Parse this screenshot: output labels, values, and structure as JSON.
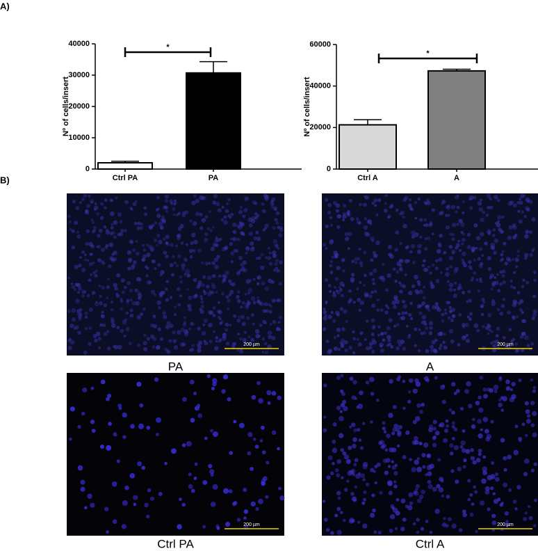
{
  "panel_labels": [
    "A)",
    "B)"
  ],
  "chart_data": [
    {
      "type": "bar",
      "ylabel": "Nº of cells/insert",
      "categories": [
        "Ctrl PA",
        "PA"
      ],
      "values": [
        2000,
        30700
      ],
      "errors": [
        500,
        3600
      ],
      "colors": [
        "#ffffff",
        "#000000"
      ],
      "ylim": [
        0,
        40000
      ],
      "yticks": [
        0,
        10000,
        20000,
        30000,
        40000
      ],
      "annotation": "*"
    },
    {
      "type": "bar",
      "ylabel": "Nº of cells/insert",
      "categories": [
        "Ctrl A",
        "A"
      ],
      "values": [
        21300,
        47300
      ],
      "errors": [
        2500,
        800
      ],
      "colors": [
        "#d9d9d9",
        "#808080"
      ],
      "ylim": [
        0,
        60000
      ],
      "yticks": [
        0,
        20000,
        40000,
        60000
      ],
      "annotation": "*"
    }
  ],
  "images": [
    {
      "caption": "PA",
      "scale_bar": "200 µm"
    },
    {
      "caption": "A",
      "scale_bar": "200 µm"
    },
    {
      "caption": "Ctrl PA",
      "scale_bar": "200 µm"
    },
    {
      "caption": "Ctrl A",
      "scale_bar": "200 µm"
    }
  ]
}
